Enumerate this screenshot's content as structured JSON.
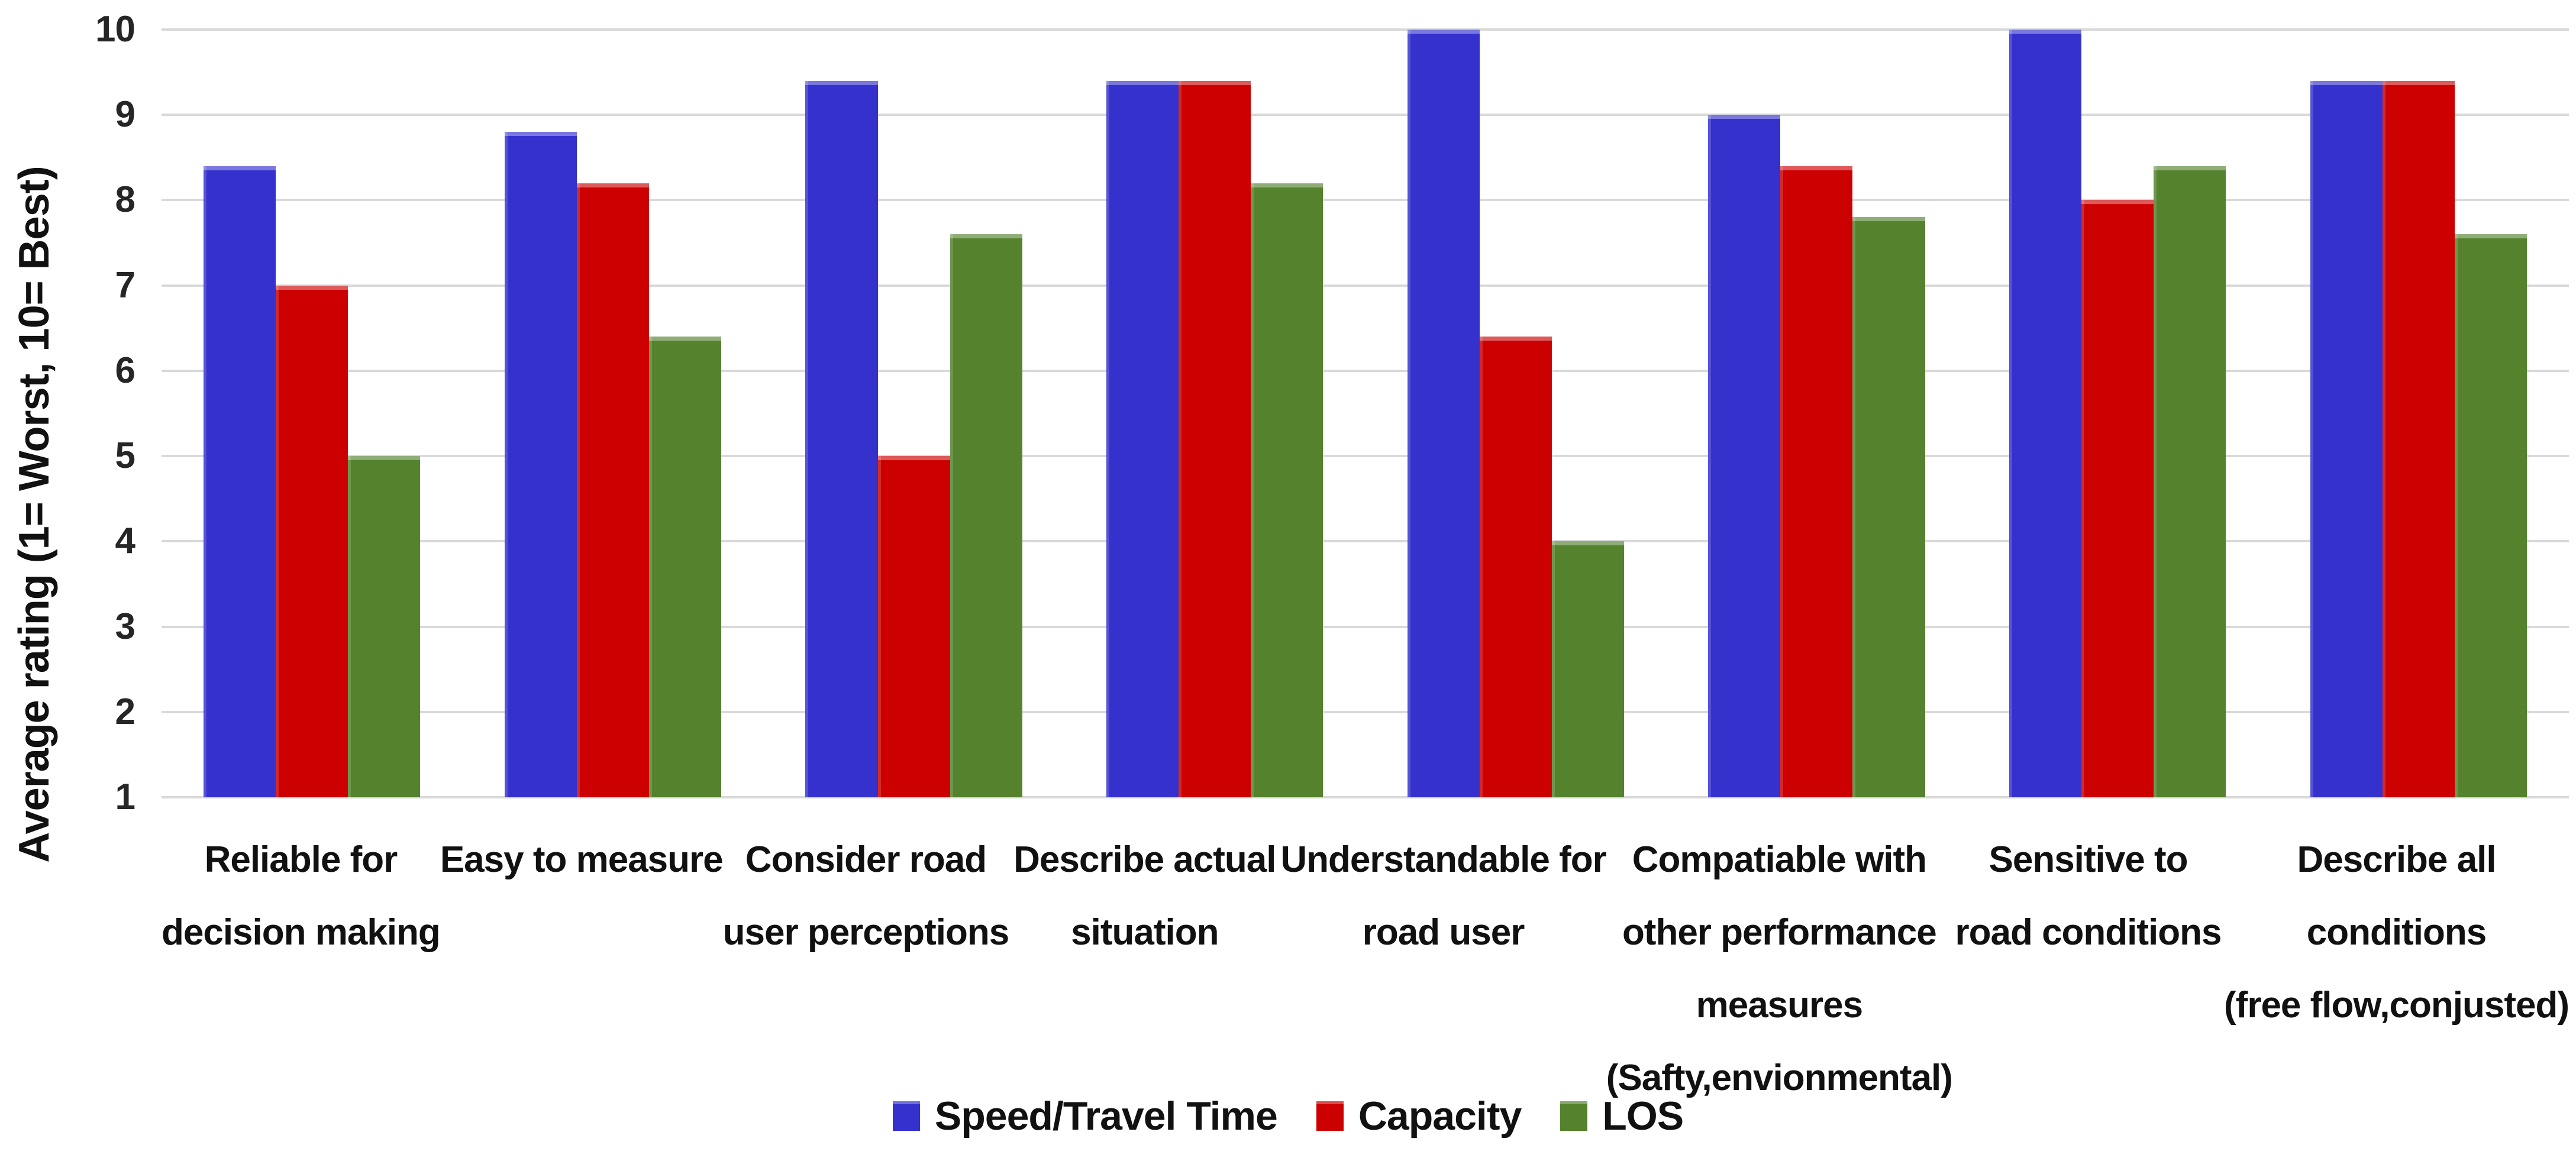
{
  "chart_data": {
    "type": "bar",
    "title": "",
    "xlabel": "",
    "ylabel": "Average rating (1= Worst, 10= Best)",
    "ylim": [
      1,
      10
    ],
    "yticks": [
      1,
      2,
      3,
      4,
      5,
      6,
      7,
      8,
      9,
      10
    ],
    "grid": true,
    "legend_position": "bottom-center",
    "background_color": "#ffffff",
    "gridline_color": "#d9d9d9",
    "categories": [
      "Reliable for decision making",
      "Easy to measure",
      "Consider road user perceptions",
      "Describe actual situation",
      "Understandable for road user",
      "Compatiable with other performance measures (Safty,envionmental)",
      "Sensitive to road conditions",
      "Describe all conditions (free flow,conjusted)"
    ],
    "category_lines": [
      [
        "Reliable for",
        "decision making"
      ],
      [
        "Easy to measure"
      ],
      [
        "Consider road",
        "user perceptions"
      ],
      [
        "Describe actual",
        "situation"
      ],
      [
        "Understandable for",
        "road user"
      ],
      [
        "Compatiable with",
        "other performance",
        "measures",
        "(Safty,envionmental)"
      ],
      [
        "Sensitive to",
        "road conditions"
      ],
      [
        "Describe all",
        "conditions",
        "(free flow,conjusted)"
      ]
    ],
    "series": [
      {
        "name": "Speed/Travel Time",
        "color": "#3431cd",
        "values": [
          8.4,
          8.8,
          9.4,
          9.4,
          10,
          9,
          10,
          9.4
        ]
      },
      {
        "name": "Capacity",
        "color": "#cc0000",
        "values": [
          7,
          8.2,
          5,
          9.4,
          6.4,
          8.4,
          8,
          9.4
        ]
      },
      {
        "name": "LOS",
        "color": "#54822d",
        "values": [
          5,
          6.4,
          7.6,
          8.2,
          4,
          7.8,
          8.4,
          7.6
        ]
      }
    ]
  }
}
